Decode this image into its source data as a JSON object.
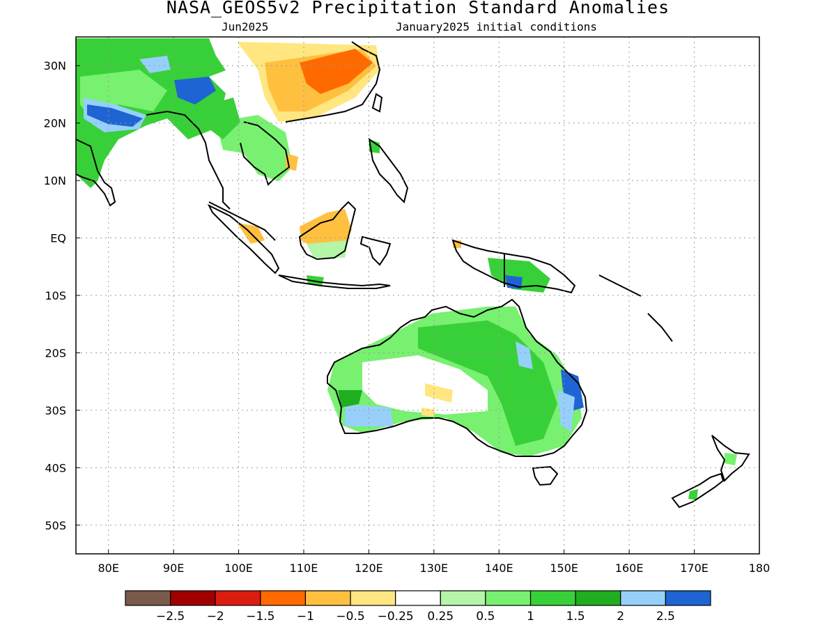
{
  "title": "NASA_GEOS5v2 Precipitation Standard Anomalies",
  "subtitle_left": "Jun2025",
  "subtitle_right": "January2025 initial conditions",
  "y_ticks": [
    "30N",
    "20N",
    "10N",
    "EQ",
    "10S",
    "20S",
    "30S",
    "40S",
    "50S"
  ],
  "x_ticks": [
    "80E",
    "90E",
    "100E",
    "110E",
    "120E",
    "130E",
    "140E",
    "150E",
    "160E",
    "170E",
    "180"
  ],
  "map_extent": {
    "lon": [
      75,
      180
    ],
    "lat": [
      -55,
      35
    ]
  },
  "colorbar": {
    "colors": [
      "#7a5a4a",
      "#a00000",
      "#dd1c10",
      "#ff6a00",
      "#ffc040",
      "#ffe680",
      "#ffffff",
      "#b4f5a8",
      "#78f070",
      "#38d038",
      "#1fae1f",
      "#96d0fa",
      "#1e64d2"
    ],
    "labels": [
      "−2.5",
      "−2",
      "−1.5",
      "−1",
      "−0.5",
      "−0.25",
      "0.25",
      "0.5",
      "1",
      "1.5",
      "2",
      "2.5"
    ]
  },
  "anomaly_regions": [
    {
      "name": "south-asia",
      "value": 1.5
    },
    {
      "name": "india-east",
      "value": 2.5
    },
    {
      "name": "south-china",
      "value": -1
    },
    {
      "name": "indochina",
      "value": 1
    },
    {
      "name": "borneo",
      "value": -0.5
    },
    {
      "name": "north-australia",
      "value": 1.5
    },
    {
      "name": "east-australia",
      "value": 2.5
    },
    {
      "name": "southwest-australia",
      "value": 2
    },
    {
      "name": "central-australia",
      "value": -0.25
    },
    {
      "name": "new-guinea",
      "value": 2.5
    }
  ]
}
